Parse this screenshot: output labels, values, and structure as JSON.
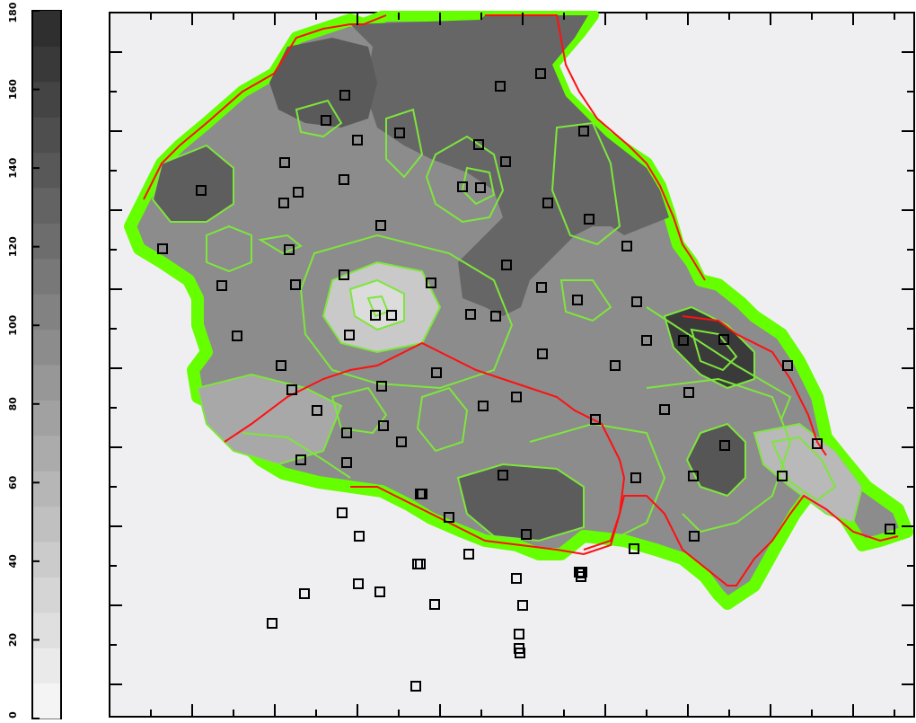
{
  "legend": {
    "scale_min": 0,
    "scale_max": 180,
    "tick_labels": [
      "0",
      "20",
      "40",
      "60",
      "80",
      "100",
      "120",
      "140",
      "160",
      "180"
    ],
    "color_low": "#f4f4f4",
    "color_high": "#2f2f2f"
  },
  "map": {
    "background": "#efeff1",
    "frame_color": "#000000",
    "outline_color": "#66ff00",
    "contour_color": "#7ee63c",
    "boundary_color": "#ff1010",
    "marker_icon": "square-station-marker-icon"
  }
}
